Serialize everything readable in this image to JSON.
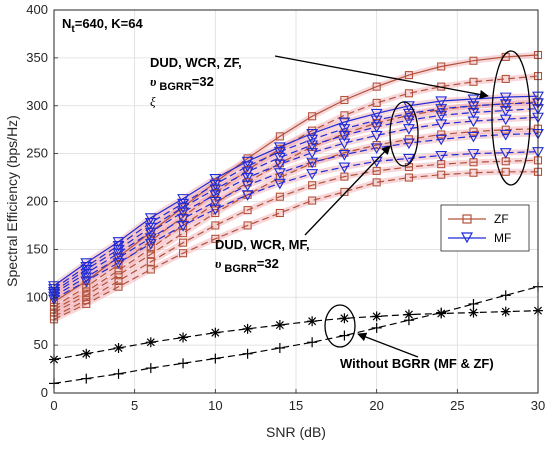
{
  "chart_data": {
    "type": "line",
    "xlabel": "SNR (dB)",
    "ylabel": "Spectral Efficiency (bps/Hz)",
    "xlim": [
      0,
      30
    ],
    "ylim": [
      0,
      400
    ],
    "xticks": [
      0,
      5,
      10,
      15,
      20,
      25,
      30
    ],
    "yticks": [
      0,
      50,
      100,
      150,
      200,
      250,
      300,
      350,
      400
    ],
    "grid": true,
    "legend_position": "right",
    "colors": {
      "ZF": "#b3523a",
      "MF": "#1f2bd6",
      "baseline": "#000000",
      "halo": "#f0a6b0"
    },
    "x": [
      0,
      2,
      4,
      6,
      8,
      10,
      12,
      14,
      16,
      18,
      20,
      22,
      24,
      26,
      28,
      30
    ],
    "series": [
      {
        "name": "ZF",
        "method": "ZF",
        "dashed": false,
        "values": [
          95,
          117,
          142,
          168,
          194,
          220,
          245,
          268,
          289,
          306,
          320,
          332,
          341,
          347,
          351,
          353
        ]
      },
      {
        "name": "",
        "method": "ZF",
        "dashed": true,
        "values": [
          90,
          111,
          134,
          159,
          184,
          209,
          233,
          255,
          274,
          290,
          303,
          313,
          320,
          325,
          328,
          331
        ]
      },
      {
        "name": "",
        "method": "ZF",
        "dashed": true,
        "values": [
          87,
          106,
          128,
          151,
          175,
          198,
          220,
          240,
          257,
          271,
          282,
          290,
          296,
          300,
          302,
          304
        ]
      },
      {
        "name": "",
        "method": "ZF",
        "dashed": true,
        "values": [
          84,
          102,
          123,
          145,
          167,
          188,
          207,
          225,
          240,
          251,
          259,
          265,
          270,
          273,
          275,
          276
        ]
      },
      {
        "name": "",
        "method": "ZF",
        "dashed": true,
        "values": [
          80,
          97,
          117,
          137,
          157,
          175,
          191,
          205,
          217,
          226,
          232,
          236,
          239,
          241,
          242,
          243
        ]
      },
      {
        "name": "",
        "method": "ZF",
        "dashed": true,
        "values": [
          77,
          93,
          111,
          129,
          146,
          161,
          175,
          188,
          201,
          210,
          220,
          225,
          228,
          230,
          231,
          231
        ]
      },
      {
        "name": "MF",
        "method": "MF",
        "dashed": false,
        "values": [
          112,
          136,
          158,
          183,
          203,
          224,
          242,
          257,
          271,
          283,
          292,
          300,
          305,
          307,
          309,
          310
        ]
      },
      {
        "name": "",
        "method": "MF",
        "dashed": true,
        "values": [
          109,
          132,
          154,
          178,
          198,
          218,
          237,
          252,
          265,
          276,
          285,
          292,
          297,
          300,
          302,
          303
        ]
      },
      {
        "name": "",
        "method": "MF",
        "dashed": true,
        "values": [
          106,
          129,
          150,
          173,
          194,
          213,
          231,
          246,
          259,
          269,
          278,
          285,
          290,
          293,
          295,
          297
        ]
      },
      {
        "name": "",
        "method": "MF",
        "dashed": true,
        "values": [
          104,
          125,
          146,
          168,
          189,
          207,
          225,
          239,
          251,
          261,
          269,
          276,
          281,
          284,
          286,
          288
        ]
      },
      {
        "name": "",
        "method": "MF",
        "dashed": true,
        "values": [
          101,
          121,
          141,
          162,
          182,
          200,
          217,
          230,
          241,
          249,
          256,
          261,
          265,
          268,
          270,
          271
        ]
      },
      {
        "name": "",
        "method": "MF",
        "dashed": true,
        "values": [
          98,
          117,
          136,
          156,
          175,
          192,
          207,
          219,
          229,
          236,
          242,
          245,
          248,
          250,
          251,
          252
        ]
      },
      {
        "name": "",
        "method": "baseline-MF",
        "dashed": true,
        "marker": "star",
        "values": [
          35,
          41,
          47,
          53,
          58,
          63,
          67,
          71,
          75,
          78,
          80,
          82,
          83,
          84,
          85,
          86
        ]
      },
      {
        "name": "",
        "method": "baseline-ZF",
        "dashed": true,
        "marker": "plus",
        "values": [
          10,
          15,
          20,
          26,
          31,
          36,
          41,
          47,
          53,
          60,
          68,
          76,
          84,
          93,
          102,
          111
        ]
      }
    ],
    "annotations": {
      "params": "N",
      "params_sub": "t",
      "params_rest": "=640, K=64",
      "zf_line1": "DUD, WCR, ZF,",
      "zf_sym": "υ",
      "zf_sub": "BGRR",
      "zf_val": "=32",
      "zf_xi": "ξ",
      "mf_line1": "DUD, WCR, MF,",
      "mf_sym": "υ",
      "mf_sub": "BGRR",
      "mf_val": "=32",
      "baseline": "Without BGRR (MF & ZF)"
    }
  }
}
